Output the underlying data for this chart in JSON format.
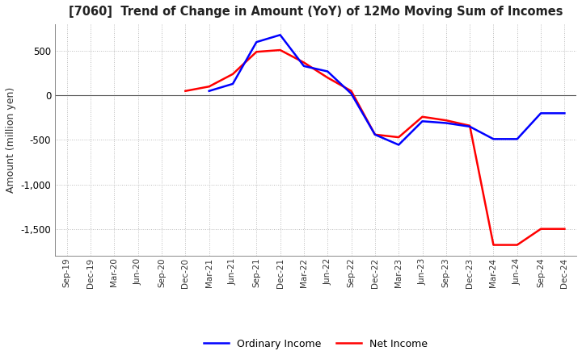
{
  "title": "[7060]  Trend of Change in Amount (YoY) of 12Mo Moving Sum of Incomes",
  "ylabel": "Amount (million yen)",
  "ylim": [
    -1800,
    800
  ],
  "yticks": [
    500,
    0,
    -500,
    -1000,
    -1500
  ],
  "background_color": "#ffffff",
  "grid_color": "#aaaaaa",
  "line_colors": {
    "ordinary": "#0000ff",
    "net": "#ff0000"
  },
  "x_labels": [
    "Sep-19",
    "Dec-19",
    "Mar-20",
    "Jun-20",
    "Sep-20",
    "Dec-20",
    "Mar-21",
    "Jun-21",
    "Sep-21",
    "Dec-21",
    "Mar-22",
    "Jun-22",
    "Sep-22",
    "Dec-22",
    "Mar-23",
    "Jun-23",
    "Sep-23",
    "Dec-23",
    "Mar-24",
    "Jun-24",
    "Sep-24",
    "Dec-24"
  ],
  "ordinary_income": [
    null,
    null,
    null,
    null,
    null,
    null,
    50,
    130,
    600,
    680,
    330,
    270,
    20,
    -440,
    -555,
    -290,
    -310,
    -350,
    -490,
    -490,
    -200,
    -200
  ],
  "net_income": [
    null,
    null,
    null,
    null,
    null,
    50,
    100,
    240,
    490,
    510,
    370,
    200,
    50,
    -440,
    -470,
    -240,
    -280,
    -340,
    -1680,
    -1680,
    -1500,
    -1500
  ]
}
